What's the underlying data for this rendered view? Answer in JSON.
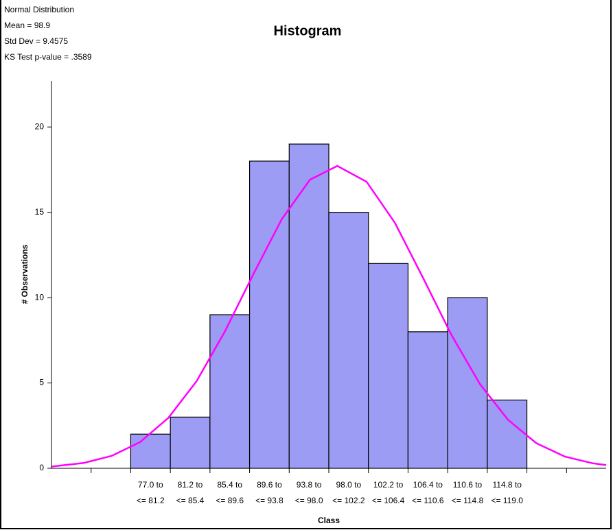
{
  "chart_data": {
    "type": "bar",
    "title": "Histogram",
    "annotations": [
      "Normal Distribution",
      "Mean = 98.9",
      "Std Dev = 9.4575",
      "KS Test p-value = .3589"
    ],
    "xlabel": "Class",
    "ylabel": "# Observations",
    "categories": [
      null,
      null,
      [
        "77.0 to",
        "<= 81.2"
      ],
      [
        "81.2 to",
        "<= 85.4"
      ],
      [
        "85.4 to",
        "<= 89.6"
      ],
      [
        "89.6 to",
        "<= 93.8"
      ],
      [
        "93.8 to",
        "<= 98.0"
      ],
      [
        "98.0 to",
        "<= 102.2"
      ],
      [
        "102.2 to",
        "<= 106.4"
      ],
      [
        "106.4 to",
        "<= 110.6"
      ],
      [
        "110.6 to",
        "<= 114.8"
      ],
      [
        "114.8 to",
        "<= 119.0"
      ],
      null,
      null
    ],
    "values": [
      null,
      null,
      2,
      3,
      9,
      18,
      19,
      15,
      12,
      8,
      10,
      4,
      null,
      null
    ],
    "color": "#9c9cf4",
    "curve": {
      "color": "#ff00ff",
      "x": [
        68.6,
        72,
        75,
        78,
        81,
        84,
        87,
        90,
        93,
        96,
        98.9,
        102,
        105,
        108,
        111,
        114,
        117,
        120,
        123,
        126,
        127.4
      ],
      "values": [
        0.1,
        0.31,
        0.73,
        1.54,
        2.96,
        5.12,
        8.03,
        11.38,
        14.59,
        16.91,
        17.72,
        16.79,
        14.39,
        11.15,
        7.82,
        4.95,
        2.84,
        1.47,
        0.69,
        0.29,
        0.19
      ]
    },
    "xlim": [
      68.6,
      127.4
    ],
    "ylim": [
      0,
      22.7
    ],
    "yticks": [
      0,
      5,
      10,
      15,
      20
    ]
  }
}
